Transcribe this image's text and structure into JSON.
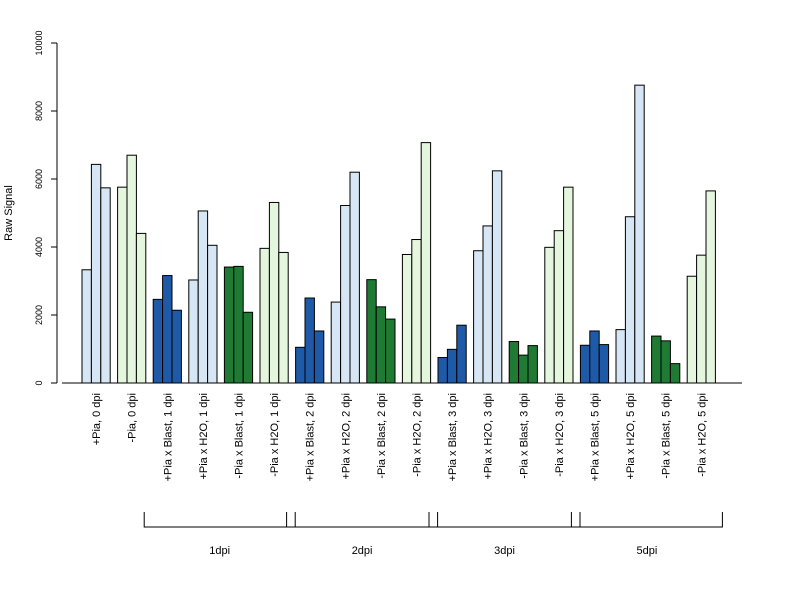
{
  "chart_data": {
    "type": "bar",
    "ylabel": "Raw Signal",
    "ylim": [
      0,
      10000
    ],
    "yticks": [
      0,
      2000,
      4000,
      6000,
      8000,
      10000
    ],
    "categories": [
      "+Pia, 0 dpi",
      "-Pia, 0 dpi",
      "+Pia x Blast, 1 dpi",
      "+Pia x H2O, 1 dpi",
      "-Pia x Blast, 1 dpi",
      "-Pia x H2O, 1 dpi",
      "+Pia x Blast, 2 dpi",
      "+Pia x H2O, 2 dpi",
      "-Pia x Blast, 2 dpi",
      "-Pia x H2O, 2 dpi",
      "+Pia x Blast, 3 dpi",
      "+Pia x H2O, 3 dpi",
      "-Pia x Blast, 3 dpi",
      "-Pia x H2O, 3 dpi",
      "+Pia x Blast, 5 dpi",
      "+Pia x H2O, 5 dpi",
      "-Pia x Blast, 5 dpi",
      "-Pia x H2O, 5 dpi"
    ],
    "replicates": [
      [
        3330,
        6430,
        5740
      ],
      [
        5760,
        6700,
        4400
      ],
      [
        2460,
        3160,
        2140
      ],
      [
        3030,
        5060,
        4050
      ],
      [
        3410,
        3430,
        2080
      ],
      [
        3960,
        5310,
        3840
      ],
      [
        1050,
        2500,
        1530
      ],
      [
        2380,
        5220,
        6200
      ],
      [
        3040,
        2240,
        1880
      ],
      [
        3780,
        4220,
        7070
      ],
      [
        750,
        990,
        1700
      ],
      [
        3890,
        4620,
        6240
      ],
      [
        1220,
        820,
        1100
      ],
      [
        3990,
        4480,
        5760
      ],
      [
        1110,
        1530,
        1130
      ],
      [
        1570,
        4890,
        8760
      ],
      [
        1380,
        1240,
        570
      ],
      [
        3140,
        3760,
        5650
      ]
    ],
    "colors": [
      "#d6e6f5",
      "#e4f6dd",
      "#1f5aa8",
      "#d6e6f5",
      "#1f7a33",
      "#e4f6dd",
      "#1f5aa8",
      "#d6e6f5",
      "#1f7a33",
      "#e4f6dd",
      "#1f5aa8",
      "#d6e6f5",
      "#1f7a33",
      "#e4f6dd",
      "#1f5aa8",
      "#d6e6f5",
      "#1f7a33",
      "#e4f6dd"
    ],
    "groups": [
      {
        "label": "1dpi",
        "start": 2,
        "end": 5
      },
      {
        "label": "2dpi",
        "start": 6,
        "end": 9
      },
      {
        "label": "3dpi",
        "start": 10,
        "end": 13
      },
      {
        "label": "5dpi",
        "start": 14,
        "end": 17
      }
    ]
  }
}
